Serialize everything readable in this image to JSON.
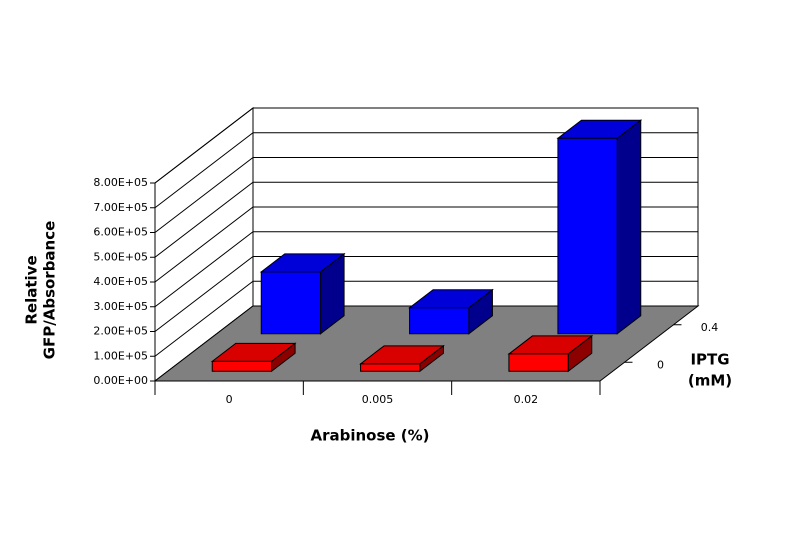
{
  "chart_data": {
    "type": "bar3d",
    "categories": [
      "0",
      "0.005",
      "0.02"
    ],
    "series": [
      {
        "name": "0",
        "color": "#ff0000",
        "values": [
          40000,
          30000,
          70000
        ]
      },
      {
        "name": "0.4",
        "color": "#0000ff",
        "values": [
          250000,
          105000,
          790000
        ]
      }
    ],
    "x_label": "Arabinose (%)",
    "y_label": [
      "Relative",
      "GFP/Absorbance"
    ],
    "z_label": [
      "IPTG",
      "(mM)"
    ],
    "ylim": [
      0,
      800000
    ],
    "yticks": [
      {
        "value": 0,
        "label": "0.00E+00"
      },
      {
        "value": 100000,
        "label": "1.00E+05"
      },
      {
        "value": 200000,
        "label": "2.00E+05"
      },
      {
        "value": 300000,
        "label": "3.00E+05"
      },
      {
        "value": 400000,
        "label": "4.00E+05"
      },
      {
        "value": 500000,
        "label": "5.00E+05"
      },
      {
        "value": 600000,
        "label": "6.00E+05"
      },
      {
        "value": 700000,
        "label": "7.00E+05"
      },
      {
        "value": 800000,
        "label": "8.00E+05"
      }
    ],
    "grid": true
  }
}
